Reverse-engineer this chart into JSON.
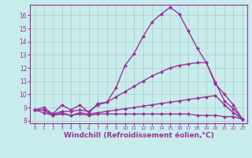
{
  "xlabel": "Windchill (Refroidissement éolien,°C)",
  "ylabel": "",
  "background_color": "#c8ecec",
  "grid_color": "#b0c8c8",
  "line_color": "#993399",
  "xlim": [
    -0.5,
    23.5
  ],
  "ylim": [
    7.8,
    16.8
  ],
  "xticks": [
    0,
    1,
    2,
    3,
    4,
    5,
    6,
    7,
    8,
    9,
    10,
    11,
    12,
    13,
    14,
    15,
    16,
    17,
    18,
    19,
    20,
    21,
    22,
    23
  ],
  "yticks": [
    8,
    9,
    10,
    11,
    12,
    13,
    14,
    15,
    16
  ],
  "series1_x": [
    0,
    1,
    2,
    3,
    4,
    5,
    6,
    7,
    8,
    9,
    10,
    11,
    12,
    13,
    14,
    15,
    16,
    17,
    18,
    19,
    20,
    21,
    22,
    23
  ],
  "series1_y": [
    8.8,
    9.0,
    8.5,
    9.2,
    8.8,
    9.2,
    8.6,
    9.3,
    9.4,
    10.5,
    12.2,
    13.1,
    14.4,
    15.5,
    16.1,
    16.6,
    16.1,
    14.8,
    13.5,
    12.4,
    10.9,
    9.5,
    8.9,
    8.1
  ],
  "series2_x": [
    0,
    1,
    2,
    3,
    4,
    5,
    6,
    7,
    8,
    9,
    10,
    11,
    12,
    13,
    14,
    15,
    16,
    17,
    18,
    19,
    20,
    21,
    22,
    23
  ],
  "series2_y": [
    8.8,
    8.8,
    8.5,
    8.7,
    8.7,
    8.8,
    8.7,
    9.2,
    9.4,
    9.8,
    10.2,
    10.6,
    11.0,
    11.4,
    11.7,
    12.0,
    12.2,
    12.3,
    12.4,
    12.4,
    10.8,
    10.0,
    9.2,
    8.1
  ],
  "series3_x": [
    0,
    1,
    2,
    3,
    4,
    5,
    6,
    7,
    8,
    9,
    10,
    11,
    12,
    13,
    14,
    15,
    16,
    17,
    18,
    19,
    20,
    21,
    22,
    23
  ],
  "series3_y": [
    8.8,
    8.8,
    8.4,
    8.6,
    8.4,
    8.6,
    8.5,
    8.6,
    8.7,
    8.8,
    8.9,
    9.0,
    9.1,
    9.2,
    9.3,
    9.4,
    9.5,
    9.6,
    9.7,
    9.8,
    9.9,
    9.2,
    8.6,
    8.1
  ],
  "series4_x": [
    0,
    1,
    2,
    3,
    4,
    5,
    6,
    7,
    8,
    9,
    10,
    11,
    12,
    13,
    14,
    15,
    16,
    17,
    18,
    19,
    20,
    21,
    22,
    23
  ],
  "series4_y": [
    8.8,
    8.6,
    8.4,
    8.5,
    8.4,
    8.5,
    8.4,
    8.5,
    8.5,
    8.5,
    8.5,
    8.5,
    8.5,
    8.5,
    8.5,
    8.5,
    8.5,
    8.5,
    8.4,
    8.4,
    8.4,
    8.3,
    8.3,
    8.1
  ],
  "marker": "D",
  "markersize": 2.5,
  "linewidth": 1.0,
  "xlabel_fontsize": 6.5,
  "tick_fontsize": 5.5
}
